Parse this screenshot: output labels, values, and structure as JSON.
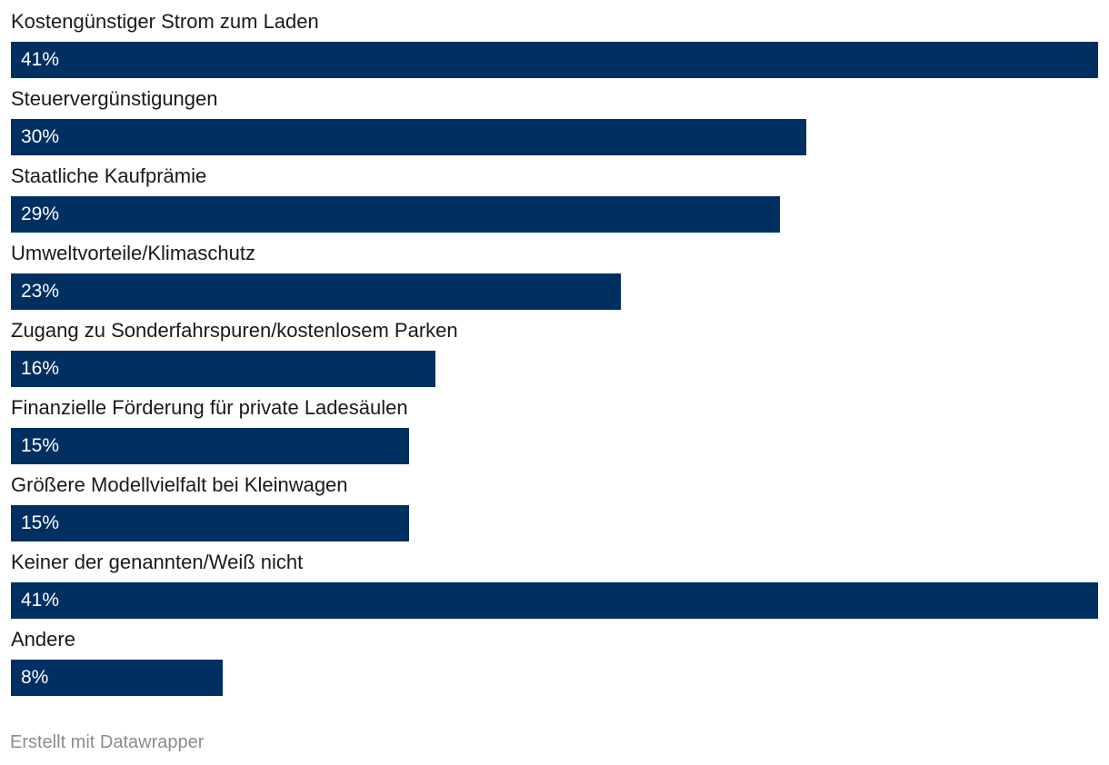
{
  "chart_data": {
    "type": "bar",
    "orientation": "horizontal",
    "categories": [
      "Kostengünstiger Strom zum Laden",
      "Steuervergünstigungen",
      "Staatliche Kaufprämie",
      "Umweltvorteile/Klimaschutz",
      "Zugang zu Sonderfahrspuren/kostenlosem Parken",
      "Finanzielle Förderung für private Ladesäulen",
      "Größere Modellvielfalt bei Kleinwagen",
      "Keiner der genannten/Weiß nicht",
      "Andere"
    ],
    "values": [
      41,
      30,
      29,
      23,
      16,
      15,
      15,
      41,
      8
    ],
    "value_labels": [
      "41%",
      "30%",
      "29%",
      "23%",
      "16%",
      "15%",
      "15%",
      "41%",
      "8%"
    ],
    "unit": "%",
    "xlim": [
      0,
      41
    ],
    "bar_color": "#002f62",
    "grid": false,
    "legend": "none"
  },
  "footer": {
    "credit": "Erstellt mit Datawrapper"
  }
}
